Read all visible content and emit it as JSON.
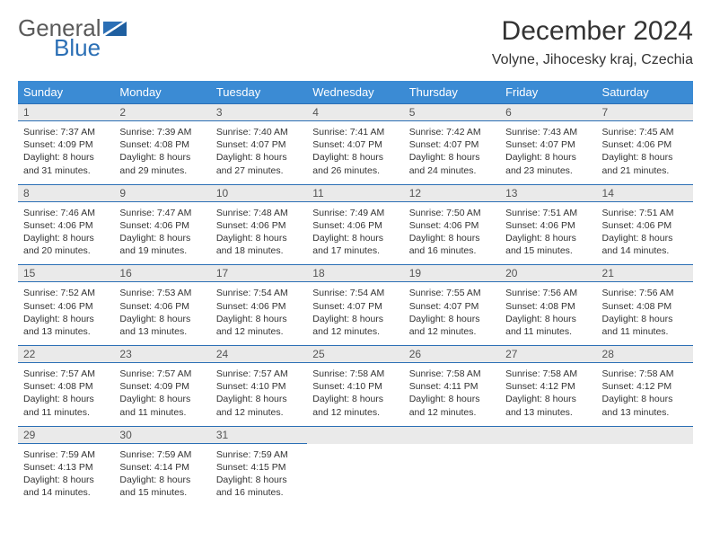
{
  "logo": {
    "word1": "General",
    "word2": "Blue",
    "color1": "#5a5a5a",
    "color2": "#2b6fb5"
  },
  "title": "December 2024",
  "location": "Volyne, Jihocesky kraj, Czechia",
  "header_bg": "#3b8bd4",
  "stripe_bg": "#eaeaea",
  "stripe_border": "#2b6fb5",
  "weekdays": [
    "Sunday",
    "Monday",
    "Tuesday",
    "Wednesday",
    "Thursday",
    "Friday",
    "Saturday"
  ],
  "weeks": [
    [
      {
        "day": "1",
        "sunrise": "Sunrise: 7:37 AM",
        "sunset": "Sunset: 4:09 PM",
        "daylight": "Daylight: 8 hours and 31 minutes."
      },
      {
        "day": "2",
        "sunrise": "Sunrise: 7:39 AM",
        "sunset": "Sunset: 4:08 PM",
        "daylight": "Daylight: 8 hours and 29 minutes."
      },
      {
        "day": "3",
        "sunrise": "Sunrise: 7:40 AM",
        "sunset": "Sunset: 4:07 PM",
        "daylight": "Daylight: 8 hours and 27 minutes."
      },
      {
        "day": "4",
        "sunrise": "Sunrise: 7:41 AM",
        "sunset": "Sunset: 4:07 PM",
        "daylight": "Daylight: 8 hours and 26 minutes."
      },
      {
        "day": "5",
        "sunrise": "Sunrise: 7:42 AM",
        "sunset": "Sunset: 4:07 PM",
        "daylight": "Daylight: 8 hours and 24 minutes."
      },
      {
        "day": "6",
        "sunrise": "Sunrise: 7:43 AM",
        "sunset": "Sunset: 4:07 PM",
        "daylight": "Daylight: 8 hours and 23 minutes."
      },
      {
        "day": "7",
        "sunrise": "Sunrise: 7:45 AM",
        "sunset": "Sunset: 4:06 PM",
        "daylight": "Daylight: 8 hours and 21 minutes."
      }
    ],
    [
      {
        "day": "8",
        "sunrise": "Sunrise: 7:46 AM",
        "sunset": "Sunset: 4:06 PM",
        "daylight": "Daylight: 8 hours and 20 minutes."
      },
      {
        "day": "9",
        "sunrise": "Sunrise: 7:47 AM",
        "sunset": "Sunset: 4:06 PM",
        "daylight": "Daylight: 8 hours and 19 minutes."
      },
      {
        "day": "10",
        "sunrise": "Sunrise: 7:48 AM",
        "sunset": "Sunset: 4:06 PM",
        "daylight": "Daylight: 8 hours and 18 minutes."
      },
      {
        "day": "11",
        "sunrise": "Sunrise: 7:49 AM",
        "sunset": "Sunset: 4:06 PM",
        "daylight": "Daylight: 8 hours and 17 minutes."
      },
      {
        "day": "12",
        "sunrise": "Sunrise: 7:50 AM",
        "sunset": "Sunset: 4:06 PM",
        "daylight": "Daylight: 8 hours and 16 minutes."
      },
      {
        "day": "13",
        "sunrise": "Sunrise: 7:51 AM",
        "sunset": "Sunset: 4:06 PM",
        "daylight": "Daylight: 8 hours and 15 minutes."
      },
      {
        "day": "14",
        "sunrise": "Sunrise: 7:51 AM",
        "sunset": "Sunset: 4:06 PM",
        "daylight": "Daylight: 8 hours and 14 minutes."
      }
    ],
    [
      {
        "day": "15",
        "sunrise": "Sunrise: 7:52 AM",
        "sunset": "Sunset: 4:06 PM",
        "daylight": "Daylight: 8 hours and 13 minutes."
      },
      {
        "day": "16",
        "sunrise": "Sunrise: 7:53 AM",
        "sunset": "Sunset: 4:06 PM",
        "daylight": "Daylight: 8 hours and 13 minutes."
      },
      {
        "day": "17",
        "sunrise": "Sunrise: 7:54 AM",
        "sunset": "Sunset: 4:06 PM",
        "daylight": "Daylight: 8 hours and 12 minutes."
      },
      {
        "day": "18",
        "sunrise": "Sunrise: 7:54 AM",
        "sunset": "Sunset: 4:07 PM",
        "daylight": "Daylight: 8 hours and 12 minutes."
      },
      {
        "day": "19",
        "sunrise": "Sunrise: 7:55 AM",
        "sunset": "Sunset: 4:07 PM",
        "daylight": "Daylight: 8 hours and 12 minutes."
      },
      {
        "day": "20",
        "sunrise": "Sunrise: 7:56 AM",
        "sunset": "Sunset: 4:08 PM",
        "daylight": "Daylight: 8 hours and 11 minutes."
      },
      {
        "day": "21",
        "sunrise": "Sunrise: 7:56 AM",
        "sunset": "Sunset: 4:08 PM",
        "daylight": "Daylight: 8 hours and 11 minutes."
      }
    ],
    [
      {
        "day": "22",
        "sunrise": "Sunrise: 7:57 AM",
        "sunset": "Sunset: 4:08 PM",
        "daylight": "Daylight: 8 hours and 11 minutes."
      },
      {
        "day": "23",
        "sunrise": "Sunrise: 7:57 AM",
        "sunset": "Sunset: 4:09 PM",
        "daylight": "Daylight: 8 hours and 11 minutes."
      },
      {
        "day": "24",
        "sunrise": "Sunrise: 7:57 AM",
        "sunset": "Sunset: 4:10 PM",
        "daylight": "Daylight: 8 hours and 12 minutes."
      },
      {
        "day": "25",
        "sunrise": "Sunrise: 7:58 AM",
        "sunset": "Sunset: 4:10 PM",
        "daylight": "Daylight: 8 hours and 12 minutes."
      },
      {
        "day": "26",
        "sunrise": "Sunrise: 7:58 AM",
        "sunset": "Sunset: 4:11 PM",
        "daylight": "Daylight: 8 hours and 12 minutes."
      },
      {
        "day": "27",
        "sunrise": "Sunrise: 7:58 AM",
        "sunset": "Sunset: 4:12 PM",
        "daylight": "Daylight: 8 hours and 13 minutes."
      },
      {
        "day": "28",
        "sunrise": "Sunrise: 7:58 AM",
        "sunset": "Sunset: 4:12 PM",
        "daylight": "Daylight: 8 hours and 13 minutes."
      }
    ],
    [
      {
        "day": "29",
        "sunrise": "Sunrise: 7:59 AM",
        "sunset": "Sunset: 4:13 PM",
        "daylight": "Daylight: 8 hours and 14 minutes."
      },
      {
        "day": "30",
        "sunrise": "Sunrise: 7:59 AM",
        "sunset": "Sunset: 4:14 PM",
        "daylight": "Daylight: 8 hours and 15 minutes."
      },
      {
        "day": "31",
        "sunrise": "Sunrise: 7:59 AM",
        "sunset": "Sunset: 4:15 PM",
        "daylight": "Daylight: 8 hours and 16 minutes."
      },
      {
        "day": "",
        "sunrise": "",
        "sunset": "",
        "daylight": ""
      },
      {
        "day": "",
        "sunrise": "",
        "sunset": "",
        "daylight": ""
      },
      {
        "day": "",
        "sunrise": "",
        "sunset": "",
        "daylight": ""
      },
      {
        "day": "",
        "sunrise": "",
        "sunset": "",
        "daylight": ""
      }
    ]
  ]
}
